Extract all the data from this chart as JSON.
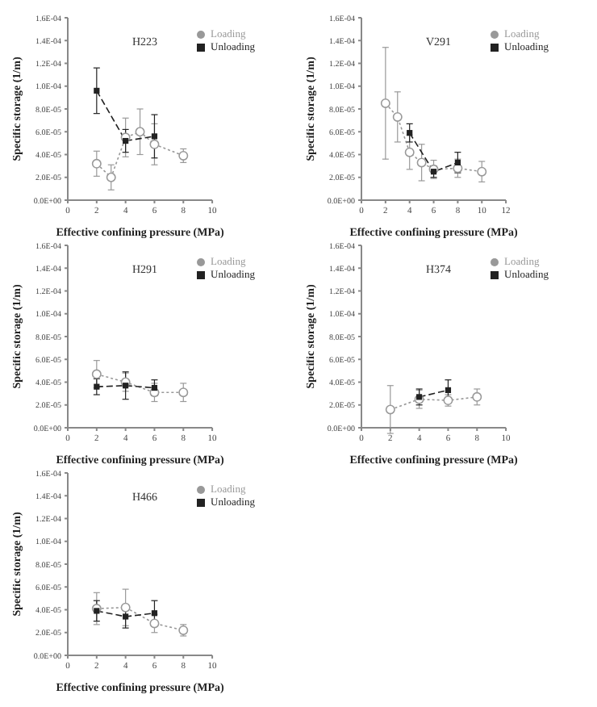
{
  "chart_data": [
    {
      "type": "line",
      "annotations": [
        "H223"
      ],
      "xlabel": "Effective confining pressure (MPa)",
      "ylabel": "Specific storage (1/m)",
      "xlim": [
        0,
        10
      ],
      "xticks": [
        0,
        2,
        4,
        6,
        8,
        10
      ],
      "ylim": [
        0,
        0.00016
      ],
      "yticks": [
        {
          "value": 0,
          "label": "0.0E+00"
        },
        {
          "value": 2e-05,
          "label": "2.0E-05"
        },
        {
          "value": 4e-05,
          "label": "4.0E-05"
        },
        {
          "value": 6e-05,
          "label": "6.0E-05"
        },
        {
          "value": 8e-05,
          "label": "8.0E-05"
        },
        {
          "value": 0.0001,
          "label": "1.0E-04"
        },
        {
          "value": 0.00012,
          "label": "1.2E-04"
        },
        {
          "value": 0.00014,
          "label": "1.4E-04"
        },
        {
          "value": 0.00016,
          "label": "1.6E-04"
        }
      ],
      "grid": false,
      "legend": "top right",
      "series": [
        {
          "name": "Loading",
          "color": "#999999",
          "marker": "circle",
          "line_style": "dotted",
          "x": [
            2,
            3,
            4,
            5,
            6,
            8
          ],
          "values": [
            3.2e-05,
            2e-05,
            5.5e-05,
            6e-05,
            4.9e-05,
            3.9e-05
          ],
          "errors": [
            1.1e-05,
            1.1e-05,
            1.7e-05,
            2e-05,
            1.8e-05,
            6e-06
          ]
        },
        {
          "name": "Unloading",
          "color": "#222222",
          "marker": "square",
          "line_style": "dashed",
          "x": [
            2,
            4,
            6
          ],
          "values": [
            9.6e-05,
            5.2e-05,
            5.6e-05
          ],
          "errors": [
            2e-05,
            1e-05,
            1.9e-05
          ]
        }
      ]
    },
    {
      "type": "line",
      "annotations": [
        "V291"
      ],
      "xlabel": "Effective confining pressure (MPa)",
      "ylabel": "Specific storage (1/m)",
      "xlim": [
        0,
        12
      ],
      "xticks": [
        0,
        2,
        4,
        6,
        8,
        10,
        12
      ],
      "ylim": [
        0,
        0.00016
      ],
      "yticks": [
        {
          "value": 0,
          "label": "0.0E+00"
        },
        {
          "value": 2e-05,
          "label": "2.0E-05"
        },
        {
          "value": 4e-05,
          "label": "4.0E-05"
        },
        {
          "value": 6e-05,
          "label": "6.0E-05"
        },
        {
          "value": 8e-05,
          "label": "8.0E-05"
        },
        {
          "value": 0.0001,
          "label": "1.0E-04"
        },
        {
          "value": 0.00012,
          "label": "1.2E-04"
        },
        {
          "value": 0.00014,
          "label": "1.4E-04"
        },
        {
          "value": 0.00016,
          "label": "1.6E-04"
        }
      ],
      "grid": false,
      "legend": "top right",
      "series": [
        {
          "name": "Loading",
          "color": "#999999",
          "marker": "circle",
          "line_style": "dotted",
          "x": [
            2,
            3,
            4,
            5,
            6,
            8,
            10
          ],
          "values": [
            8.5e-05,
            7.3e-05,
            4.2e-05,
            3.3e-05,
            2.7e-05,
            2.8e-05,
            2.5e-05
          ],
          "errors": [
            4.9e-05,
            2.2e-05,
            1.5e-05,
            1.6e-05,
            8e-06,
            8e-06,
            9e-06
          ]
        },
        {
          "name": "Unloading",
          "color": "#222222",
          "marker": "square",
          "line_style": "dashed",
          "x": [
            4,
            6,
            8
          ],
          "values": [
            5.9e-05,
            2.5e-05,
            3.3e-05
          ],
          "errors": [
            8e-06,
            5e-06,
            9e-06
          ]
        }
      ]
    },
    {
      "type": "line",
      "annotations": [
        "H291"
      ],
      "xlabel": "Effective confining pressure (MPa)",
      "ylabel": "Specific storage (1/m)",
      "xlim": [
        0,
        10
      ],
      "xticks": [
        0,
        2,
        4,
        6,
        8,
        10
      ],
      "ylim": [
        0,
        0.00016
      ],
      "yticks": [
        {
          "value": 0,
          "label": "0.0E+00"
        },
        {
          "value": 2e-05,
          "label": "2.0E-05"
        },
        {
          "value": 4e-05,
          "label": "4.0E-05"
        },
        {
          "value": 6e-05,
          "label": "6.0E-05"
        },
        {
          "value": 8e-05,
          "label": "8.0E-05"
        },
        {
          "value": 0.0001,
          "label": "1.0E-04"
        },
        {
          "value": 0.00012,
          "label": "1.2E-04"
        },
        {
          "value": 0.00014,
          "label": "1.4E-04"
        },
        {
          "value": 0.00016,
          "label": "1.6E-04"
        }
      ],
      "grid": false,
      "legend": "top right",
      "series": [
        {
          "name": "Loading",
          "color": "#999999",
          "marker": "circle",
          "line_style": "dotted",
          "x": [
            2,
            4,
            6,
            8
          ],
          "values": [
            4.7e-05,
            4e-05,
            3.1e-05,
            3.1e-05
          ],
          "errors": [
            1.2e-05,
            8e-06,
            8e-06,
            8e-06
          ]
        },
        {
          "name": "Unloading",
          "color": "#222222",
          "marker": "square",
          "line_style": "dashed",
          "x": [
            2,
            4,
            6
          ],
          "values": [
            3.6e-05,
            3.7e-05,
            3.5e-05
          ],
          "errors": [
            7e-06,
            1.2e-05,
            7e-06
          ]
        }
      ]
    },
    {
      "type": "line",
      "annotations": [
        "H374"
      ],
      "xlabel": "Effective confining pressure (MPa)",
      "ylabel": "Specific storage (1/m)",
      "xlim": [
        0,
        10
      ],
      "xticks": [
        0,
        2,
        4,
        6,
        8,
        10
      ],
      "ylim": [
        0,
        0.00016
      ],
      "yticks": [
        {
          "value": 0,
          "label": "0.0E+00"
        },
        {
          "value": 2e-05,
          "label": "2.0E-05"
        },
        {
          "value": 4e-05,
          "label": "4.0E-05"
        },
        {
          "value": 6e-05,
          "label": "6.0E-05"
        },
        {
          "value": 8e-05,
          "label": "8.0E-05"
        },
        {
          "value": 0.0001,
          "label": "1.0E-04"
        },
        {
          "value": 0.00012,
          "label": "1.2E-04"
        },
        {
          "value": 0.00014,
          "label": "1.4E-04"
        },
        {
          "value": 0.00016,
          "label": "1.6E-04"
        }
      ],
      "grid": false,
      "legend": "top right",
      "series": [
        {
          "name": "Loading",
          "color": "#999999",
          "marker": "circle",
          "line_style": "dotted",
          "x": [
            2,
            4,
            6,
            8
          ],
          "values": [
            1.6e-05,
            2.5e-05,
            2.4e-05,
            2.7e-05
          ],
          "errors": [
            2.1e-05,
            8e-06,
            5e-06,
            7e-06
          ]
        },
        {
          "name": "Unloading",
          "color": "#222222",
          "marker": "square",
          "line_style": "dashed",
          "x": [
            4,
            6
          ],
          "values": [
            2.7e-05,
            3.3e-05
          ],
          "errors": [
            7e-06,
            9e-06
          ]
        }
      ]
    },
    {
      "type": "line",
      "annotations": [
        "H466"
      ],
      "xlabel": "Effective confining pressure (MPa)",
      "ylabel": "Specific storage (1/m)",
      "xlim": [
        0,
        10
      ],
      "xticks": [
        0,
        2,
        4,
        6,
        8,
        10
      ],
      "ylim": [
        0,
        0.00016
      ],
      "yticks": [
        {
          "value": 0,
          "label": "0.0E+00"
        },
        {
          "value": 2e-05,
          "label": "2.0E-05"
        },
        {
          "value": 4e-05,
          "label": "4.0E-05"
        },
        {
          "value": 6e-05,
          "label": "6.0E-05"
        },
        {
          "value": 8e-05,
          "label": "8.0E-05"
        },
        {
          "value": 0.0001,
          "label": "1.0E-04"
        },
        {
          "value": 0.00012,
          "label": "1.2E-04"
        },
        {
          "value": 0.00014,
          "label": "1.4E-04"
        },
        {
          "value": 0.00016,
          "label": "1.6E-04"
        }
      ],
      "grid": false,
      "legend": "top right",
      "series": [
        {
          "name": "Loading",
          "color": "#999999",
          "marker": "circle",
          "line_style": "dotted",
          "x": [
            2,
            4,
            6,
            8
          ],
          "values": [
            4.1e-05,
            4.2e-05,
            2.8e-05,
            2.2e-05
          ],
          "errors": [
            1.4e-05,
            1.6e-05,
            8e-06,
            5e-06
          ]
        },
        {
          "name": "Unloading",
          "color": "#222222",
          "marker": "square",
          "line_style": "dashed",
          "x": [
            2,
            4,
            6
          ],
          "values": [
            3.9e-05,
            3.4e-05,
            3.7e-05
          ],
          "errors": [
            9e-06,
            1e-05,
            1.1e-05
          ]
        }
      ]
    }
  ]
}
